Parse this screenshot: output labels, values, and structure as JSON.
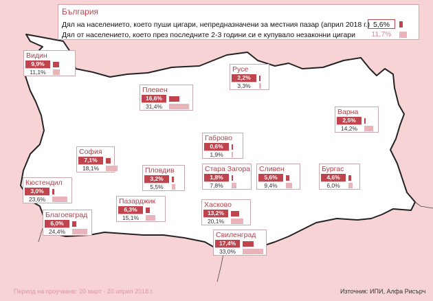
{
  "colors": {
    "accent": "#c0444e",
    "accent_light": "#e9b4b9",
    "sea_background": "#f7d3d5",
    "country_fill": "#ffffff",
    "map_border": "#222222"
  },
  "legend": {
    "title": "България",
    "smoking_label": "Дял на населението, което пуши цигари, непредназначени за местния пазар (април 2018 г.)",
    "smoking_value": "5,6%",
    "smoking_share": 5.6,
    "illegal_label": "Дял от населението, което през последните 2-3 години си е купувало незаконни цигари",
    "illegal_value": "11,7%",
    "illegal_share": 11.7
  },
  "regions": [
    {
      "id": "vidin",
      "name": "Видин",
      "smoking": "9,9%",
      "smoking_share": 9.9,
      "illegal": "11,1%",
      "illegal_share": 11.1
    },
    {
      "id": "ruse",
      "name": "Русе",
      "smoking": "2,2%",
      "smoking_share": 2.2,
      "illegal": "3,3%",
      "illegal_share": 3.3
    },
    {
      "id": "pleven",
      "name": "Плевен",
      "smoking": "16,6%",
      "smoking_share": 16.6,
      "illegal": "31,4%",
      "illegal_share": 31.4
    },
    {
      "id": "varna",
      "name": "Варна",
      "smoking": "2,5%",
      "smoking_share": 2.5,
      "illegal": "14,2%",
      "illegal_share": 14.2
    },
    {
      "id": "gabrovo",
      "name": "Габрово",
      "smoking": "0,6%",
      "smoking_share": 0.6,
      "illegal": "1,9%",
      "illegal_share": 1.9
    },
    {
      "id": "sofia",
      "name": "София",
      "smoking": "7,1%",
      "smoking_share": 7.1,
      "illegal": "18,1%",
      "illegal_share": 18.1
    },
    {
      "id": "plovdiv",
      "name": "Пловдив",
      "smoking": "3,2%",
      "smoking_share": 3.2,
      "illegal": "5,5%",
      "illegal_share": 5.5
    },
    {
      "id": "stara-zagora",
      "name": "Стара Загора",
      "smoking": "1,8%",
      "smoking_share": 1.8,
      "illegal": "7,8%",
      "illegal_share": 7.8
    },
    {
      "id": "sliven",
      "name": "Сливен",
      "smoking": "5,6%",
      "smoking_share": 5.6,
      "illegal": "9,4%",
      "illegal_share": 9.4
    },
    {
      "id": "burgas",
      "name": "Бургас",
      "smoking": "4,6%",
      "smoking_share": 4.6,
      "illegal": "6,0%",
      "illegal_share": 6.0
    },
    {
      "id": "kyustendil",
      "name": "Кюстендил",
      "smoking": "3,0%",
      "smoking_share": 3.0,
      "illegal": "23,6%",
      "illegal_share": 23.6
    },
    {
      "id": "pazardzhik",
      "name": "Пазарджик",
      "smoking": "6,3%",
      "smoking_share": 6.3,
      "illegal": "15,1%",
      "illegal_share": 15.1
    },
    {
      "id": "blagoevgrad",
      "name": "Благоевград",
      "smoking": "6,0%",
      "smoking_share": 6.0,
      "illegal": "24,4%",
      "illegal_share": 24.4
    },
    {
      "id": "haskovo",
      "name": "Хасково",
      "smoking": "13,2%",
      "smoking_share": 13.2,
      "illegal": "20,1%",
      "illegal_share": 20.1
    },
    {
      "id": "svilengrad",
      "name": "Свиленград",
      "smoking": "17,4%",
      "smoking_share": 17.4,
      "illegal": "33,0%",
      "illegal_share": 33.0
    }
  ],
  "footer": {
    "period": "Период на проучване: 20 март - 20 април 2018 г.",
    "source": "Източник: ИПИ, Алфа Рисърч"
  }
}
